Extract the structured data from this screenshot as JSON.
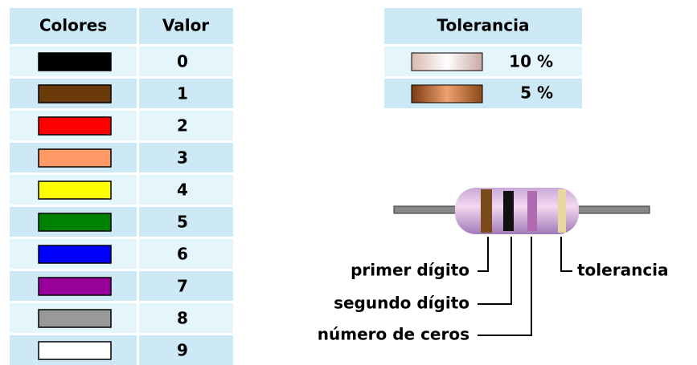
{
  "color_table": {
    "headers": [
      "Colores",
      "Valor"
    ],
    "rows": [
      {
        "color": "#000000",
        "value": "0"
      },
      {
        "color": "#6b3a0a",
        "value": "1"
      },
      {
        "color": "#ff0000",
        "value": "2"
      },
      {
        "color": "#ff9966",
        "value": "3"
      },
      {
        "color": "#ffff00",
        "value": "4"
      },
      {
        "color": "#008000",
        "value": "5"
      },
      {
        "color": "#0000ff",
        "value": "6"
      },
      {
        "color": "#990099",
        "value": "7"
      },
      {
        "color": "#999999",
        "value": "8"
      },
      {
        "color": "#ffffff",
        "value": "9"
      }
    ]
  },
  "tolerance_table": {
    "header": "Tolerancia",
    "rows": [
      "10 %",
      "5 %"
    ]
  },
  "resistor": {
    "labels": [
      "primer dígito",
      "segundo dígito",
      "número de ceros",
      "tolerancia"
    ]
  }
}
